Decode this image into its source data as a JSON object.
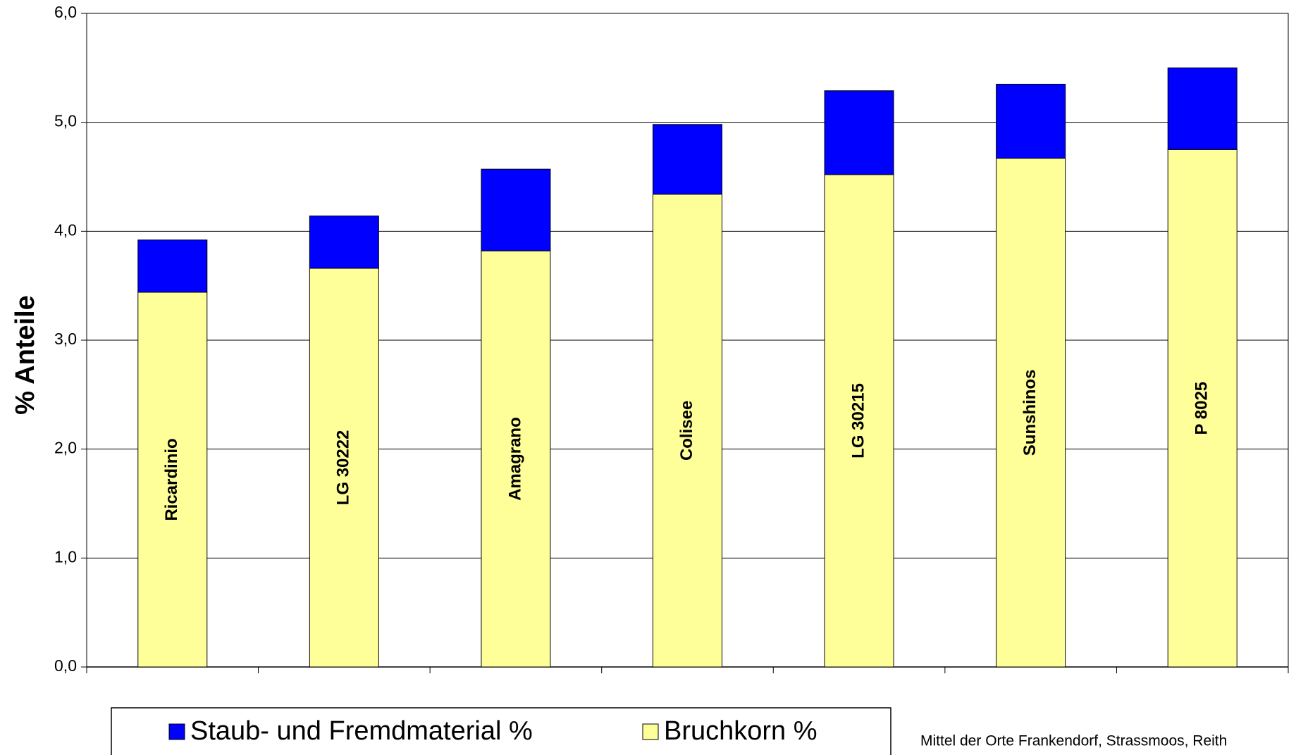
{
  "chart_data": {
    "type": "stacked_bar",
    "y_label": "% Anteile",
    "note": "Mittel der Orte Frankendorf, Strassmoos, Reith",
    "categories": [
      "Ricardinio",
      "LG 30222",
      "Amagrano",
      "Colisee",
      "LG 30215",
      "Sunshinos",
      "P 8025"
    ],
    "series": [
      {
        "name": "Bruchkorn %",
        "color": "#ffff99",
        "values": [
          3.44,
          3.66,
          3.82,
          4.34,
          4.52,
          4.67,
          4.75
        ]
      },
      {
        "name": "Staub- und Fremdmaterial %",
        "color": "#0000ff",
        "values": [
          0.48,
          0.48,
          0.75,
          0.64,
          0.77,
          0.68,
          0.75
        ]
      }
    ],
    "ylim": [
      0,
      6
    ],
    "yticks": [
      {
        "value": 0,
        "label": "0,0"
      },
      {
        "value": 1,
        "label": "1,0"
      },
      {
        "value": 2,
        "label": "2,0"
      },
      {
        "value": 3,
        "label": "3,0"
      },
      {
        "value": 4,
        "label": "4,0"
      },
      {
        "value": 5,
        "label": "5,0"
      },
      {
        "value": 6,
        "label": "6,0"
      }
    ],
    "grid": true
  }
}
